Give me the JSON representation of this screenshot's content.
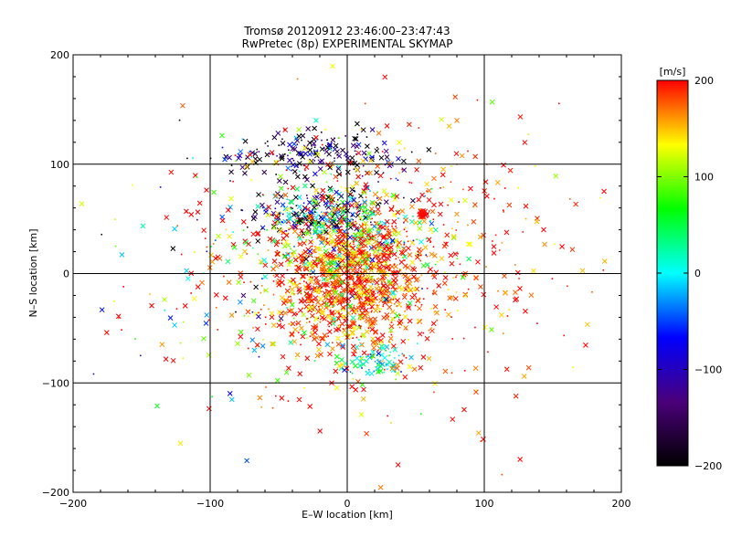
{
  "chart_data": {
    "type": "scatter",
    "title": "Tromsø 20120912 23:46:00–23:47:43",
    "subtitle": "RwPretec (8p) EXPERIMENTAL SKYMAP",
    "xlabel": "E–W location [km]",
    "ylabel": "N–S location [km]",
    "xlim": [
      -200,
      200
    ],
    "ylim": [
      -200,
      200
    ],
    "xticks": [
      "−200",
      "−100",
      "0",
      "100",
      "200"
    ],
    "yticks": [
      "−200",
      "−100",
      "0",
      "100",
      "200"
    ],
    "xtick_values": [
      -200,
      -100,
      0,
      100,
      200
    ],
    "ytick_values": [
      -200,
      -100,
      0,
      100,
      200
    ],
    "grid": true,
    "colorbar": {
      "label": "[m/s]",
      "range": [
        -200,
        200
      ],
      "ticks": [
        "200",
        "100",
        "0",
        "−100",
        "−200"
      ],
      "tick_values": [
        200,
        100,
        0,
        -100,
        -200
      ],
      "colors": [
        "#000000",
        "#4a007a",
        "#0000ff",
        "#00ffff",
        "#00ff00",
        "#ffff00",
        "#ff0000"
      ]
    },
    "markers": [
      "x",
      "."
    ],
    "clusters": [
      {
        "x": 0,
        "y": -10,
        "sx": 25,
        "sy": 30,
        "count": 900,
        "vmean": 180,
        "vspread": 40
      },
      {
        "x": -20,
        "y": 55,
        "sx": 25,
        "sy": 10,
        "count": 250,
        "vmean": -100,
        "vspread": 120
      },
      {
        "x": -25,
        "y": 110,
        "sx": 35,
        "sy": 12,
        "count": 200,
        "vmean": -150,
        "vspread": 80
      },
      {
        "x": 10,
        "y": 30,
        "sx": 30,
        "sy": 25,
        "count": 350,
        "vmean": 120,
        "vspread": 90
      },
      {
        "x": 20,
        "y": -80,
        "sx": 12,
        "sy": 8,
        "count": 80,
        "vmean": 20,
        "vspread": 40
      },
      {
        "x": 40,
        "y": 10,
        "sx": 70,
        "sy": 70,
        "count": 500,
        "vmean": 180,
        "vspread": 40
      },
      {
        "x": 55,
        "y": 55,
        "sx": 2,
        "sy": 2,
        "count": 30,
        "vmean": 200,
        "vspread": 5
      },
      {
        "x": -60,
        "y": 0,
        "sx": 60,
        "sy": 60,
        "count": 250,
        "vmean": 120,
        "vspread": 150
      }
    ]
  }
}
